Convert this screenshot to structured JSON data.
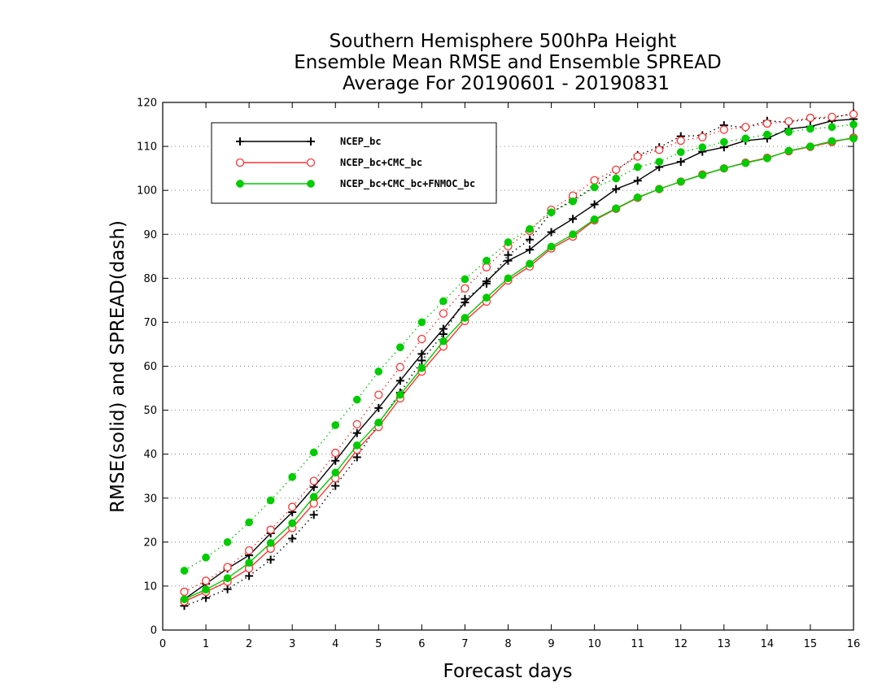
{
  "chart_data": {
    "type": "line",
    "title": [
      "Southern Hemisphere 500hPa Height",
      "Ensemble Mean RMSE and Ensemble SPREAD",
      "Average For 20190601 - 20190831"
    ],
    "xlabel": "Forecast days",
    "ylabel": "RMSE(solid) and SPREAD(dash)",
    "xlim": [
      0,
      16
    ],
    "ylim": [
      0,
      120
    ],
    "xticks": [
      0,
      1,
      2,
      3,
      4,
      5,
      6,
      7,
      8,
      9,
      10,
      11,
      12,
      13,
      14,
      15,
      16
    ],
    "yticks": [
      0,
      10,
      20,
      30,
      40,
      50,
      60,
      70,
      80,
      90,
      100,
      110,
      120
    ],
    "grid": "horizontal-dotted",
    "legend_position": "top-left",
    "x": [
      0.5,
      1,
      1.5,
      2,
      2.5,
      3,
      3.5,
      4,
      4.5,
      5,
      5.5,
      6,
      6.5,
      7,
      7.5,
      8,
      8.5,
      9,
      9.5,
      10,
      10.5,
      11,
      11.5,
      12,
      12.5,
      13,
      13.5,
      14,
      14.5,
      15,
      15.5,
      16
    ],
    "series": [
      {
        "name": "NCEP_bc",
        "color": "#000000",
        "marker": "plus",
        "rmse": [
          7.0,
          10.5,
          14.0,
          17.0,
          22.0,
          26.8,
          32.5,
          38.5,
          44.8,
          50.5,
          56.7,
          62.8,
          68.5,
          74.5,
          79.3,
          84.0,
          86.5,
          90.5,
          93.5,
          96.8,
          100.3,
          102.2,
          105.3,
          106.5,
          108.8,
          109.8,
          111.3,
          111.8,
          114.0,
          114.5,
          115.8,
          116.2
        ],
        "spread": [
          5.5,
          7.3,
          9.3,
          12.3,
          16.0,
          20.8,
          26.2,
          32.8,
          39.3,
          47.0,
          54.0,
          61.3,
          67.3,
          75.3,
          78.8,
          85.3,
          88.8,
          95.0,
          97.8,
          100.8,
          104.6,
          108.0,
          109.8,
          112.3,
          112.5,
          114.8,
          114.3,
          115.8,
          115.5,
          116.3,
          116.5,
          117.5
        ]
      },
      {
        "name": "NCEP_bc+CMC_bc",
        "color": "#ff3333",
        "marker": "open-circle",
        "rmse": [
          6.5,
          8.7,
          11.0,
          14.0,
          18.5,
          23.2,
          28.8,
          34.5,
          41.0,
          46.2,
          52.7,
          58.8,
          64.5,
          70.3,
          74.7,
          79.5,
          82.7,
          86.8,
          89.5,
          93.2,
          95.8,
          98.3,
          100.3,
          102.0,
          103.6,
          105.0,
          106.3,
          107.4,
          108.9,
          109.9,
          111.0,
          112.0
        ],
        "spread": [
          8.7,
          11.2,
          14.3,
          18.1,
          22.8,
          28.0,
          33.9,
          40.3,
          46.8,
          53.5,
          59.8,
          66.2,
          72.0,
          77.7,
          82.5,
          87.3,
          90.8,
          95.6,
          98.8,
          102.3,
          104.7,
          107.7,
          109.2,
          111.3,
          112.1,
          113.8,
          114.4,
          115.2,
          115.7,
          116.5,
          116.7,
          117.3
        ]
      },
      {
        "name": "NCEP_bc+CMC_bc+FNMOC_bc",
        "color": "#00cc00",
        "marker": "filled-circle",
        "rmse": [
          7.0,
          9.2,
          11.8,
          15.3,
          19.8,
          24.3,
          30.3,
          35.8,
          42.0,
          47.2,
          53.5,
          59.6,
          65.7,
          71.0,
          75.6,
          80.0,
          83.3,
          87.2,
          90.0,
          93.4,
          95.9,
          98.4,
          100.3,
          102.0,
          103.5,
          105.0,
          106.2,
          107.3,
          109.0,
          110.0,
          111.2,
          111.8
        ],
        "spread": [
          13.5,
          16.5,
          20.0,
          24.5,
          29.5,
          34.8,
          40.4,
          46.6,
          52.4,
          58.8,
          64.3,
          70.0,
          74.8,
          79.8,
          84.0,
          88.2,
          91.2,
          95.0,
          97.5,
          100.7,
          102.7,
          105.3,
          106.5,
          108.7,
          109.8,
          111.0,
          111.8,
          112.7,
          113.3,
          114.0,
          114.4,
          115.0
        ]
      }
    ]
  }
}
